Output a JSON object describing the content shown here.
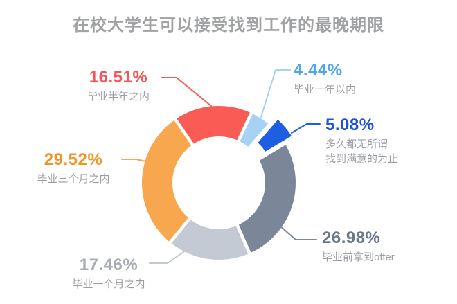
{
  "title": "在校大学生可以接受找到工作的最晚期限",
  "chart_data": {
    "type": "pie",
    "subtype": "donut",
    "title": "在校大学生可以接受找到工作的最晚期限",
    "unit": "%",
    "start_angle_deg": 25,
    "clockwise": true,
    "legend_position": "none",
    "background": "#ffffff",
    "slices": [
      {
        "label": "毕业一年以内",
        "value": 4.44,
        "pct_label": "4.44%",
        "color": "#a6d3f4",
        "text_color": "#4ea5f0",
        "exploded": false
      },
      {
        "label": "多久都无所谓\n找到满意的为止",
        "value": 5.08,
        "pct_label": "5.08%",
        "color": "#1e5fe2",
        "text_color": "#1e52dc",
        "exploded": true
      },
      {
        "label": "毕业前拿到offer",
        "value": 26.98,
        "pct_label": "26.98%",
        "color": "#7b8798",
        "text_color": "#6a7889",
        "exploded": false
      },
      {
        "label": "毕业一个月之内",
        "value": 17.46,
        "pct_label": "17.46%",
        "color": "#c4cad3",
        "text_color": "#a8adb5",
        "exploded": false
      },
      {
        "label": "毕业三个月之内",
        "value": 29.52,
        "pct_label": "29.52%",
        "color": "#f9a74f",
        "text_color": "#f6921f",
        "exploded": false
      },
      {
        "label": "毕业半年之内",
        "value": 16.51,
        "pct_label": "16.51%",
        "color": "#fa5b55",
        "text_color": "#f95456",
        "exploded": false
      }
    ]
  }
}
